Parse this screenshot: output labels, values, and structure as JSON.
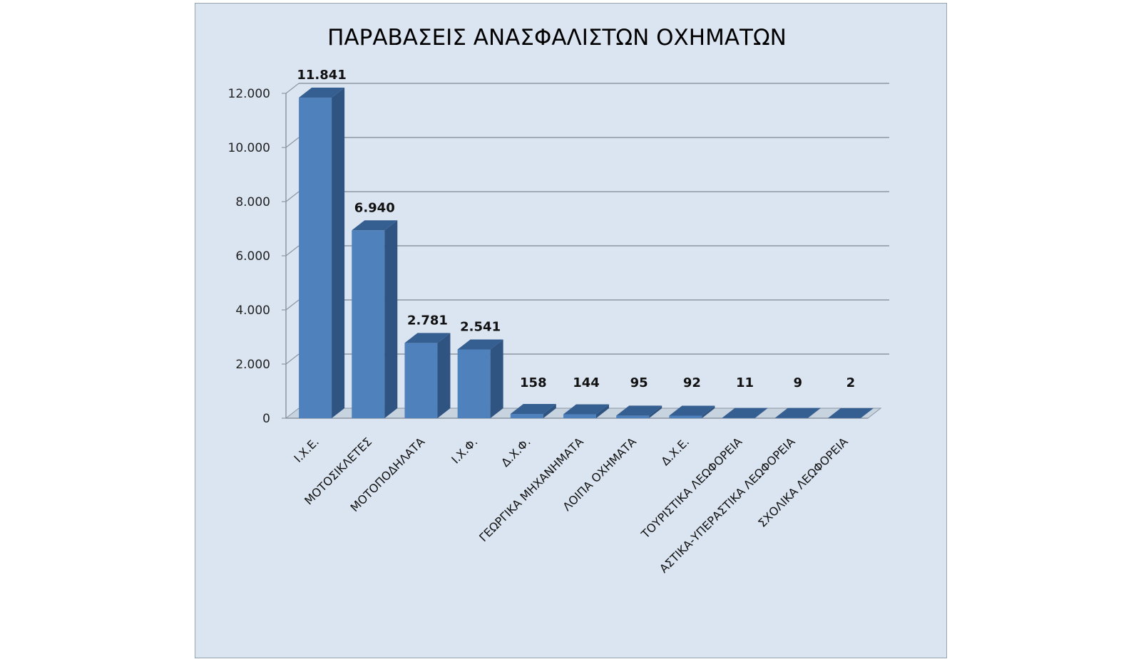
{
  "chart_data": {
    "type": "bar",
    "title": "ΠΑΡΑΒΑΣΕΙΣ ΑΝΑΣΦΑΛΙΣΤΩΝ ΟΧΗΜΑΤΩΝ",
    "categories": [
      "Ι.Χ.Ε.",
      "ΜΟΤΟΣΙΚΛΕΤΕΣ",
      "ΜΟΤΟΠΟΔΗΛΑΤΑ",
      "Ι.Χ.Φ.",
      "Δ.Χ.Φ.",
      "ΓΕΩΡΓΙΚΑ ΜΗΧΑΝΗΜΑΤΑ",
      "ΛΟΙΠΑ ΟΧΗΜΑΤΑ",
      "Δ.Χ.Ε.",
      "ΤΟΥΡΙΣΤΙΚΑ ΛΕΩΦΟΡΕΙΑ",
      "ΑΣΤΙΚΑ-ΥΠΕΡΑΣΤΙΚΑ ΛΕΩΦΟΡΕΙΑ",
      "ΣΧΟΛΙΚΑ ΛΕΩΦΟΡΕΙΑ"
    ],
    "values": [
      11841,
      6940,
      2781,
      2541,
      158,
      144,
      95,
      92,
      11,
      9,
      2
    ],
    "data_labels": [
      "11.841",
      "6.940",
      "2.781",
      "2.541",
      "158",
      "144",
      "95",
      "92",
      "11",
      "9",
      "2"
    ],
    "ylim": [
      0,
      12000
    ],
    "yticks": [
      0,
      2000,
      4000,
      6000,
      8000,
      10000,
      12000
    ],
    "ytick_labels": [
      "0",
      "2.000",
      "4.000",
      "6.000",
      "8.000",
      "10.000",
      "12.000"
    ],
    "xlabel": "",
    "ylabel": "",
    "grid": true,
    "style": "3d-columns",
    "colors": {
      "bar_front": "#4f81bd",
      "bar_side": "#2f5482",
      "bar_top": "#365f91",
      "panel_background": "#dbe5f1",
      "gridline": "#8c96a2",
      "floor": "#c8d3e0"
    }
  }
}
